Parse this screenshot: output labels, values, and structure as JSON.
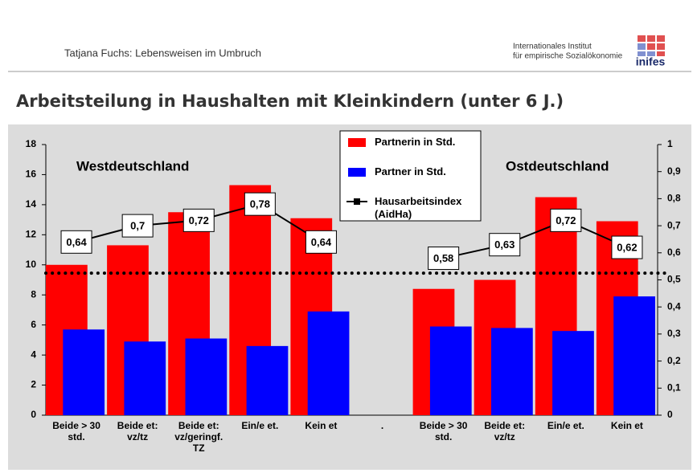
{
  "header": {
    "author": "Tatjana Fuchs: Lebensweisen im Umbruch",
    "institute_line1": "Internationales Institut",
    "institute_line2": "für empirische Sozialökonomie",
    "logo": "inifes"
  },
  "chart_data": {
    "type": "bar",
    "title": "Arbeitsteilung in Haushalten mit Kleinkindern (unter 6 J.)",
    "categories": [
      "Beide > 30 std.",
      "Beide et: vz/tz",
      "Beide et: vz/geringf. TZ",
      "Ein/e et.",
      "Kein et",
      ".",
      "Beide > 30 std.",
      "Beide et: vz/tz",
      "Ein/e et.",
      "Kein et"
    ],
    "series": [
      {
        "name": "Partnerin in Std.",
        "type": "bar",
        "color": "#ff0000",
        "values": [
          10,
          11.3,
          13.5,
          15.3,
          13.1,
          null,
          8.4,
          9,
          14.5,
          12.9
        ]
      },
      {
        "name": "Partner in Std.",
        "type": "bar",
        "color": "#0000ff",
        "values": [
          5.7,
          4.9,
          5.1,
          4.6,
          6.9,
          null,
          5.9,
          5.8,
          5.6,
          7.9
        ]
      },
      {
        "name": "Hausarbeitsindex (AidHa)",
        "type": "line",
        "axis": "y2",
        "color": "#000000",
        "values": [
          0.64,
          0.7,
          0.72,
          0.78,
          0.64,
          null,
          0.58,
          0.63,
          0.72,
          0.62
        ],
        "value_labels": [
          "0,64",
          "0,7",
          "0,72",
          "0,78",
          "0,64",
          null,
          "0,58",
          "0,63",
          "0,72",
          "0,62"
        ]
      }
    ],
    "ylim": [
      0,
      18
    ],
    "yticks": [
      0,
      2,
      4,
      6,
      8,
      10,
      12,
      14,
      16,
      18
    ],
    "y2lim": [
      0,
      1
    ],
    "y2ticks": [
      0,
      {
        "value": 0.1,
        "label": "0,1"
      },
      {
        "value": 0.2,
        "label": "0,2"
      },
      {
        "value": 0.3,
        "label": "0,3"
      },
      {
        "value": 0.4,
        "label": "0,4"
      },
      {
        "value": 0.5,
        "label": "0,5"
      },
      {
        "value": 0.6,
        "label": "0,6"
      },
      {
        "value": 0.7,
        "label": "0,7"
      },
      {
        "value": 0.8,
        "label": "0,8"
      },
      {
        "value": 0.9,
        "label": "0,9"
      },
      1
    ],
    "reference_line": {
      "value": 0.525,
      "axis": "y2"
    },
    "annotations": [
      "Westdeutschland",
      "Ostdeutschland"
    ]
  }
}
